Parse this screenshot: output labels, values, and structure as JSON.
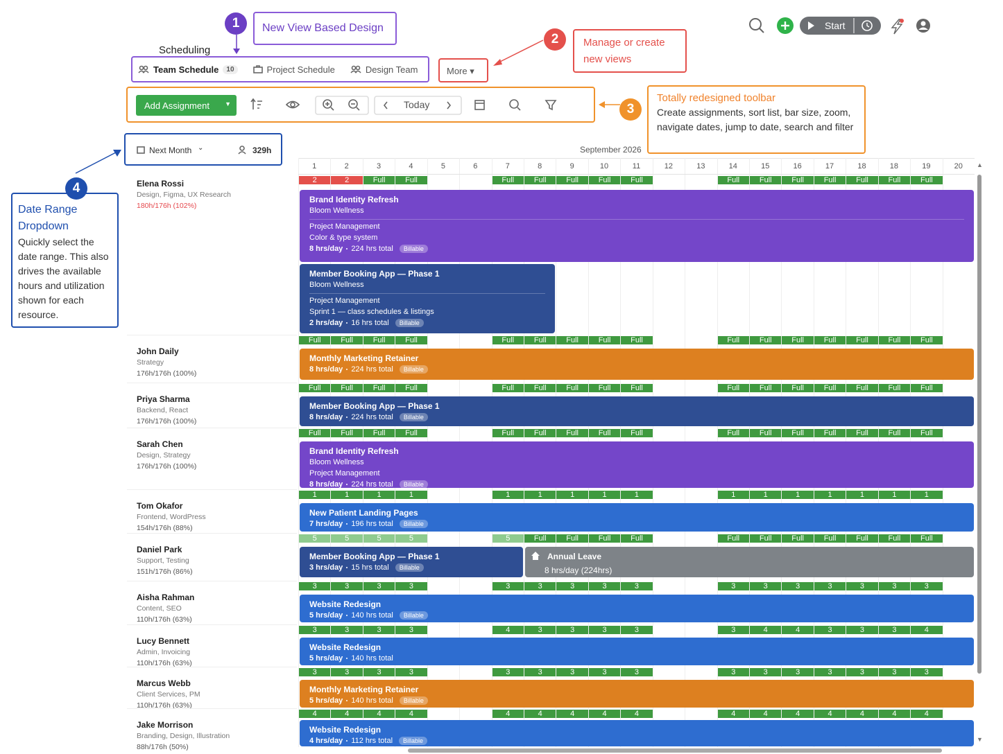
{
  "header": {
    "section": "Scheduling",
    "tabs": [
      {
        "label": "Team Schedule",
        "count": "10"
      },
      {
        "label": "Project Schedule"
      },
      {
        "label": "Design Team"
      }
    ],
    "more": "More",
    "start": "Start"
  },
  "callouts": [
    {
      "number": "1",
      "title": "New View Based Design"
    },
    {
      "number": "2",
      "title": "Manage or create new views"
    },
    {
      "number": "3",
      "title": "Totally redesigned toolbar",
      "body": "Create assignments, sort list, bar size, zoom, navigate dates, jump to date, search and filter"
    },
    {
      "number": "4",
      "title": "Date Range Dropdown",
      "body": "Quickly select the date range. This also drives the available hours and utilization shown for each resource."
    }
  ],
  "toolbar": {
    "add": "Add Assignment",
    "today": "Today"
  },
  "range": {
    "label": "Next Month",
    "hours": "329h"
  },
  "month": "September 2026",
  "days": [
    "1",
    "2",
    "3",
    "4",
    "5",
    "6",
    "7",
    "8",
    "9",
    "10",
    "11",
    "12",
    "13",
    "14",
    "15",
    "16",
    "17",
    "18",
    "18",
    "19",
    "20"
  ],
  "resources": [
    {
      "name": "Elena Rossi",
      "skills": "Design, Figma, UX Research",
      "util": "180h/176h (102%)",
      "util_color": "#e5484d",
      "strip": [
        "2",
        "2",
        "Full",
        "Full",
        null,
        null,
        "Full",
        "Full",
        "Full",
        "Full",
        "Full",
        null,
        null,
        "Full",
        "Full",
        "Full",
        "Full",
        "Full",
        "Full",
        "Full",
        null
      ],
      "strip_colors": [
        "#e4504b",
        "#e4504b",
        "#3f9a3f",
        "#3f9a3f",
        null,
        null,
        "#3f9a3f",
        "#3f9a3f",
        "#3f9a3f",
        "#3f9a3f",
        "#3f9a3f",
        null,
        null,
        "#3f9a3f",
        "#3f9a3f",
        "#3f9a3f",
        "#3f9a3f",
        "#3f9a3f",
        "#3f9a3f",
        "#3f9a3f",
        null
      ],
      "bars": [
        {
          "title": "Brand Identity Refresh",
          "client": "Bloom Wellness",
          "lines": [
            "Project Management",
            "Color & type system"
          ],
          "per_day": "8 hrs/day",
          "total": "224 hrs total",
          "badge": "Billable",
          "color": "#7446c9"
        },
        {
          "title": "Member Booking App — Phase 1",
          "client": "Bloom Wellness",
          "lines": [
            "Project Management",
            "Sprint 1 — class schedules & listings"
          ],
          "per_day": "2 hrs/day",
          "total": "16 hrs total",
          "badge": "Billable",
          "color": "#2f4e93"
        }
      ]
    },
    {
      "name": "John Daily",
      "skills": "Strategy",
      "util": "176h/176h (100%)",
      "strip": [
        "Full",
        "Full",
        "Full",
        "Full",
        null,
        null,
        "Full",
        "Full",
        "Full",
        "Full",
        "Full",
        null,
        null,
        "Full",
        "Full",
        "Full",
        "Full",
        "Full",
        "Full",
        "Full",
        null
      ],
      "bars": [
        {
          "title": "Monthly Marketing Retainer",
          "per_day": "8 hrs/day",
          "total": "224 hrs total",
          "badge": "Billable",
          "color": "#dd8020"
        }
      ]
    },
    {
      "name": "Priya Sharma",
      "skills": "Backend, React",
      "util": "176h/176h (100%)",
      "strip": [
        "Full",
        "Full",
        "Full",
        "Full",
        null,
        null,
        "Full",
        "Full",
        "Full",
        "Full",
        "Full",
        null,
        null,
        "Full",
        "Full",
        "Full",
        "Full",
        "Full",
        "Full",
        "Full",
        null
      ],
      "bars": [
        {
          "title": "Member Booking App — Phase 1",
          "per_day": "8 hrs/day",
          "total": "224 hrs total",
          "badge": "Billable",
          "color": "#2f4e93"
        }
      ]
    },
    {
      "name": "Sarah Chen",
      "skills": "Design, Strategy",
      "util": "176h/176h (100%)",
      "strip": [
        "Full",
        "Full",
        "Full",
        "Full",
        null,
        null,
        "Full",
        "Full",
        "Full",
        "Full",
        "Full",
        null,
        null,
        "Full",
        "Full",
        "Full",
        "Full",
        "Full",
        "Full",
        "Full",
        null
      ],
      "bars": [
        {
          "title": "Brand Identity Refresh",
          "client": "Bloom Wellness",
          "lines": [
            "Project Management"
          ],
          "per_day": "8 hrs/day",
          "total": "224 hrs total",
          "badge": "Billable",
          "color": "#7446c9"
        }
      ]
    },
    {
      "name": "Tom Okafor",
      "skills": "Frontend, WordPress",
      "util": "154h/176h (88%)",
      "strip": [
        "1",
        "1",
        "1",
        "1",
        null,
        null,
        "1",
        "1",
        "1",
        "1",
        "1",
        null,
        null,
        "1",
        "1",
        "1",
        "1",
        "1",
        "1",
        "1",
        null
      ],
      "bars": [
        {
          "title": "New Patient Landing Pages",
          "per_day": "7 hrs/day",
          "total": "196 hrs total",
          "badge": "Billable",
          "color": "#2e6dd0"
        }
      ]
    },
    {
      "name": "Daniel Park",
      "skills": "Support, Testing",
      "util": "151h/176h (86%)",
      "strip": [
        "5",
        "5",
        "5",
        "5",
        null,
        null,
        "5",
        "Full",
        "Full",
        "Full",
        "Full",
        null,
        null,
        "Full",
        "Full",
        "Full",
        "Full",
        "Full",
        "Full",
        "Full",
        null
      ],
      "strip_colors": [
        "#8fcb8f",
        "#8fcb8f",
        "#8fcb8f",
        "#8fcb8f",
        null,
        null,
        "#8fcb8f",
        "#3f9a3f",
        "#3f9a3f",
        "#3f9a3f",
        "#3f9a3f",
        null,
        null,
        "#3f9a3f",
        "#3f9a3f",
        "#3f9a3f",
        "#3f9a3f",
        "#3f9a3f",
        "#3f9a3f",
        "#3f9a3f",
        null
      ],
      "bars": [
        {
          "title": "Member Booking App — Phase 1",
          "per_day": "3 hrs/day",
          "total": "15 hrs total",
          "badge": "Billable",
          "color": "#2f4e93"
        },
        {
          "title": "Annual Leave",
          "per_day": "8 hrs/day (224hrs)",
          "color": "#7e8388"
        }
      ]
    },
    {
      "name": "Aisha Rahman",
      "skills": "Content, SEO",
      "util": "110h/176h (63%)",
      "strip": [
        "3",
        "3",
        "3",
        "3",
        null,
        null,
        "3",
        "3",
        "3",
        "3",
        "3",
        null,
        null,
        "3",
        "3",
        "3",
        "3",
        "3",
        "3",
        "3",
        null
      ],
      "bars": [
        {
          "title": "Website Redesign",
          "per_day": "5 hrs/day",
          "total": "140 hrs total",
          "badge": "Billable",
          "color": "#2e6dd0"
        }
      ]
    },
    {
      "name": "Lucy Bennett",
      "skills": "Admin, Invoicing",
      "util": "110h/176h (63%)",
      "strip": [
        "3",
        "3",
        "3",
        "3",
        null,
        null,
        "4",
        "3",
        "3",
        "3",
        "3",
        null,
        null,
        "3",
        "4",
        "4",
        "3",
        "3",
        "3",
        "4",
        null
      ],
      "bars": [
        {
          "title": "Website Redesign",
          "per_day": "5 hrs/day",
          "total": "140 hrs total",
          "color": "#2e6dd0"
        }
      ]
    },
    {
      "name": "Marcus Webb",
      "skills": "Client Services, PM",
      "util": "110h/176h (63%)",
      "strip": [
        "3",
        "3",
        "3",
        "3",
        null,
        null,
        "3",
        "3",
        "3",
        "3",
        "3",
        null,
        null,
        "3",
        "3",
        "3",
        "3",
        "3",
        "3",
        "3",
        null
      ],
      "bars": [
        {
          "title": "Monthly Marketing Retainer",
          "per_day": "5 hrs/day",
          "total": "140 hrs total",
          "badge": "Billable",
          "color": "#dd8020"
        }
      ]
    },
    {
      "name": "Jake Morrison",
      "skills": "Branding, Design, Illustration",
      "util": "88h/176h (50%)",
      "strip": [
        "4",
        "4",
        "4",
        "4",
        null,
        null,
        "4",
        "4",
        "4",
        "4",
        "4",
        null,
        null,
        "4",
        "4",
        "4",
        "4",
        "4",
        "4",
        "4",
        null
      ],
      "bars": [
        {
          "title": "Website Redesign",
          "per_day": "4 hrs/day",
          "total": "112 hrs total",
          "badge": "Billable",
          "color": "#2e6dd0"
        }
      ]
    }
  ]
}
